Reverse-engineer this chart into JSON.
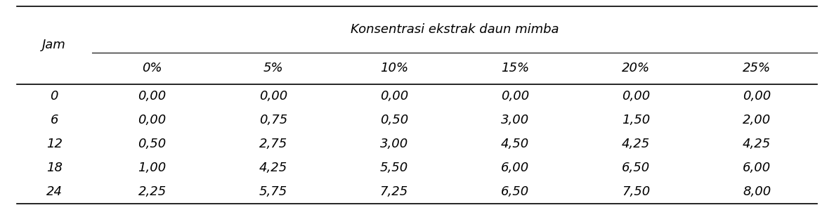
{
  "col_header_row1": "Konsentrasi ekstrak daun mimba",
  "col_header_row2": [
    "0%",
    "5%",
    "10%",
    "15%",
    "20%",
    "25%"
  ],
  "row_header": "Jam",
  "rows": [
    {
      "jam": "0",
      "values": [
        "0,00",
        "0,00",
        "0,00",
        "0,00",
        "0,00",
        "0,00"
      ]
    },
    {
      "jam": "6",
      "values": [
        "0,00",
        "0,75",
        "0,50",
        "3,00",
        "1,50",
        "2,00"
      ]
    },
    {
      "jam": "12",
      "values": [
        "0,50",
        "2,75",
        "3,00",
        "4,50",
        "4,25",
        "4,25"
      ]
    },
    {
      "jam": "18",
      "values": [
        "1,00",
        "4,25",
        "5,50",
        "6,00",
        "6,50",
        "6,00"
      ]
    },
    {
      "jam": "24",
      "values": [
        "2,25",
        "5,75",
        "7,25",
        "6,50",
        "7,50",
        "8,00"
      ]
    }
  ],
  "bg_color": "#ffffff",
  "text_color": "#000000",
  "font_size": 13,
  "header_font_size": 13
}
